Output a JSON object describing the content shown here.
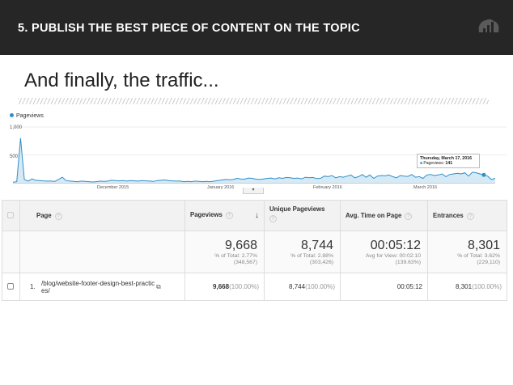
{
  "header": {
    "title": "5. PUBLISH THE BEST PIECE OF CONTENT ON THE TOPIC",
    "logo_icon": "bar-chart-heart-logo"
  },
  "subtitle": "And finally, the traffic...",
  "chart_data": {
    "type": "area",
    "legend": "Pageviews",
    "series_color": "#2f8fc9",
    "y_ticks": [
      "1,000",
      "500"
    ],
    "ylim": [
      0,
      1000
    ],
    "x_ticks": [
      "December 2015",
      "January 2016",
      "February 2016",
      "March 2016"
    ],
    "series": [
      {
        "name": "Pageviews",
        "values": [
          10,
          20,
          800,
          60,
          30,
          70,
          45,
          40,
          35,
          30,
          30,
          25,
          60,
          100,
          40,
          30,
          25,
          20,
          30,
          25,
          20,
          15,
          20,
          30,
          25,
          30,
          45,
          40,
          35,
          40,
          30,
          40,
          35,
          30,
          40,
          35,
          30,
          25,
          40,
          45,
          50,
          40,
          35,
          30,
          30,
          20,
          25,
          20,
          30,
          25,
          20,
          25,
          20,
          30,
          40,
          50,
          60,
          55,
          60,
          80,
          70,
          65,
          85,
          80,
          65,
          60,
          70,
          80,
          85,
          70,
          90,
          80,
          95,
          90,
          80,
          85,
          70,
          100,
          90,
          95,
          75,
          80,
          120,
          110,
          130,
          90,
          110,
          100,
          120,
          140,
          90,
          110,
          150,
          100,
          140,
          80,
          120,
          130,
          125,
          140,
          110,
          90,
          130,
          120,
          115,
          150,
          100,
          110,
          80,
          140,
          150,
          130,
          140,
          160,
          110,
          150,
          160,
          170,
          160,
          180,
          120,
          190,
          180,
          160,
          141,
          120,
          60,
          80
        ]
      }
    ],
    "tooltip": {
      "date": "Thursday, March 17, 2016",
      "label": "Pageviews:",
      "value": "141"
    }
  },
  "table": {
    "headers": [
      "Page",
      "Pageviews",
      "Unique Pageviews",
      "Avg. Time on Page",
      "Entrances"
    ],
    "totals": [
      {
        "value": "9,668",
        "line1": "% of Total: 2.77%",
        "line2": "(348,567)"
      },
      {
        "value": "8,744",
        "line1": "% of Total: 2.88%",
        "line2": "(303,426)"
      },
      {
        "value": "00:05:12",
        "line1": "Avg for View: 00:02:10",
        "line2": "(139.63%)"
      },
      {
        "value": "8,301",
        "line1": "% of Total: 3.62%",
        "line2": "(229,110)"
      }
    ],
    "rows": [
      {
        "index": "1.",
        "page": "/blog/website-footer-design-best-practices/",
        "pageviews": "9,668",
        "pageviews_pct": "(100.00%)",
        "unique": "8,744",
        "unique_pct": "(100.00%)",
        "avg_time": "00:05:12",
        "entrances": "8,301",
        "entrances_pct": "(100.00%)"
      }
    ]
  }
}
